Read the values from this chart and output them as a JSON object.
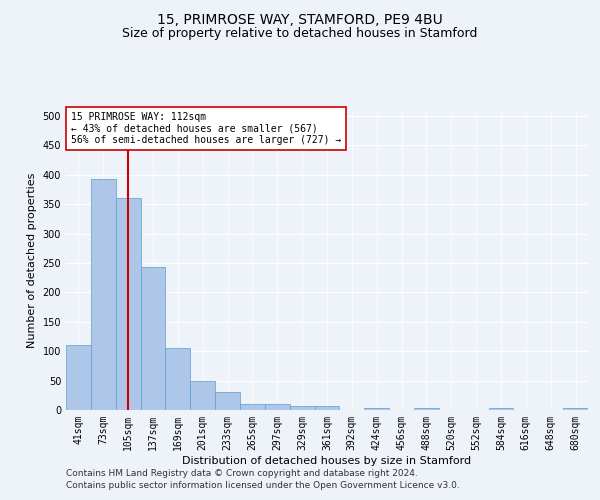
{
  "title1": "15, PRIMROSE WAY, STAMFORD, PE9 4BU",
  "title2": "Size of property relative to detached houses in Stamford",
  "xlabel": "Distribution of detached houses by size in Stamford",
  "ylabel": "Number of detached properties",
  "bar_color": "#aec6e8",
  "bar_edge_color": "#5a9fd4",
  "bar_categories": [
    "41sqm",
    "73sqm",
    "105sqm",
    "137sqm",
    "169sqm",
    "201sqm",
    "233sqm",
    "265sqm",
    "297sqm",
    "329sqm",
    "361sqm",
    "392sqm",
    "424sqm",
    "456sqm",
    "488sqm",
    "520sqm",
    "552sqm",
    "584sqm",
    "616sqm",
    "648sqm",
    "680sqm"
  ],
  "bar_values": [
    110,
    393,
    360,
    243,
    105,
    50,
    30,
    10,
    10,
    6,
    7,
    0,
    4,
    0,
    4,
    0,
    0,
    4,
    0,
    0,
    4
  ],
  "bar_width": 1.0,
  "ylim": [
    0,
    510
  ],
  "yticks": [
    0,
    50,
    100,
    150,
    200,
    250,
    300,
    350,
    400,
    450,
    500
  ],
  "vline_x": 2,
  "vline_color": "#cc0000",
  "annotation_text": "15 PRIMROSE WAY: 112sqm\n← 43% of detached houses are smaller (567)\n56% of semi-detached houses are larger (727) →",
  "annotation_box_color": "#ffffff",
  "annotation_box_edge": "#cc0000",
  "footer1": "Contains HM Land Registry data © Crown copyright and database right 2024.",
  "footer2": "Contains public sector information licensed under the Open Government Licence v3.0.",
  "background_color": "#eef2f9",
  "grid_color": "#ffffff",
  "title1_fontsize": 10,
  "title2_fontsize": 9,
  "axis_fontsize": 8,
  "tick_fontsize": 7,
  "footer_fontsize": 6.5
}
